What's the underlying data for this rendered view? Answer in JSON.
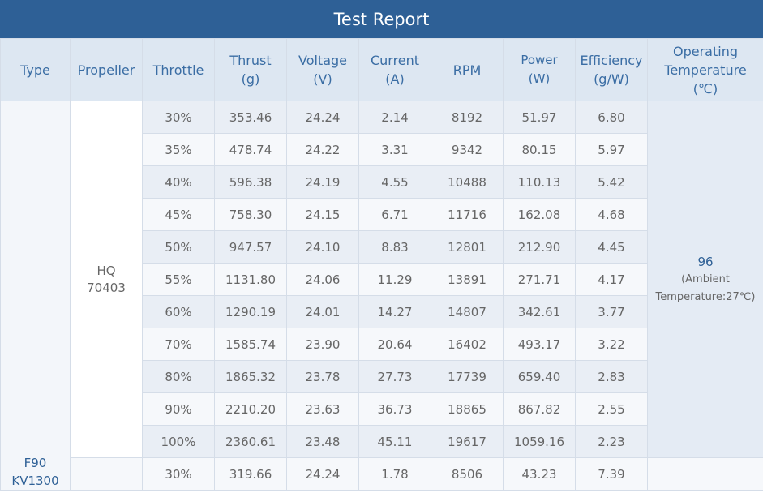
{
  "title": "Test Report",
  "headers": {
    "type": "Type",
    "propeller": "Propeller",
    "throttle": "Throttle",
    "thrust": [
      "Thrust",
      "(g)"
    ],
    "voltage": [
      "Voltage",
      "(V)"
    ],
    "current": [
      "Current",
      "(A)"
    ],
    "rpm": "RPM",
    "power": [
      "Power",
      "(W)"
    ],
    "efficiency": [
      "Efficiency",
      "(g/W)"
    ],
    "temperature": [
      "Operating",
      "Temperature",
      "(℃)"
    ]
  },
  "type": [
    "F90",
    "KV1300"
  ],
  "propeller": [
    "HQ",
    "70403"
  ],
  "temperature": {
    "value": "96",
    "note": "(Ambient Temperature:27℃)"
  },
  "rows": [
    [
      "30%",
      "353.46",
      "24.24",
      "2.14",
      "8192",
      "51.97",
      "6.80"
    ],
    [
      "35%",
      "478.74",
      "24.22",
      "3.31",
      "9342",
      "80.15",
      "5.97"
    ],
    [
      "40%",
      "596.38",
      "24.19",
      "4.55",
      "10488",
      "110.13",
      "5.42"
    ],
    [
      "45%",
      "758.30",
      "24.15",
      "6.71",
      "11716",
      "162.08",
      "4.68"
    ],
    [
      "50%",
      "947.57",
      "24.10",
      "8.83",
      "12801",
      "212.90",
      "4.45"
    ],
    [
      "55%",
      "1131.80",
      "24.06",
      "11.29",
      "13891",
      "271.71",
      "4.17"
    ],
    [
      "60%",
      "1290.19",
      "24.01",
      "14.27",
      "14807",
      "342.61",
      "3.77"
    ],
    [
      "70%",
      "1585.74",
      "23.90",
      "20.64",
      "16402",
      "493.17",
      "3.22"
    ],
    [
      "80%",
      "1865.32",
      "23.78",
      "27.73",
      "17739",
      "659.40",
      "2.83"
    ],
    [
      "90%",
      "2210.20",
      "23.63",
      "36.73",
      "18865",
      "867.82",
      "2.55"
    ],
    [
      "100%",
      "2360.61",
      "23.48",
      "45.11",
      "19617",
      "1059.16",
      "2.23"
    ]
  ],
  "next_row": [
    "30%",
    "319.66",
    "24.24",
    "1.78",
    "8506",
    "43.23",
    "7.39"
  ]
}
